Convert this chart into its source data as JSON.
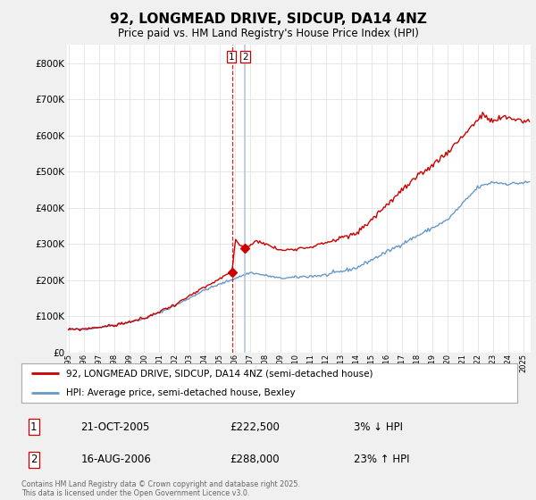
{
  "title": "92, LONGMEAD DRIVE, SIDCUP, DA14 4NZ",
  "subtitle": "Price paid vs. HM Land Registry's House Price Index (HPI)",
  "red_label": "92, LONGMEAD DRIVE, SIDCUP, DA14 4NZ (semi-detached house)",
  "blue_label": "HPI: Average price, semi-detached house, Bexley",
  "footer": "Contains HM Land Registry data © Crown copyright and database right 2025.\nThis data is licensed under the Open Government Licence v3.0.",
  "transaction1_date": "21-OCT-2005",
  "transaction1_price": "£222,500",
  "transaction1_hpi": "3% ↓ HPI",
  "transaction2_date": "16-AUG-2006",
  "transaction2_price": "£288,000",
  "transaction2_hpi": "23% ↑ HPI",
  "vline_x1": 2005.8,
  "vline_x2": 2006.62,
  "sale1_value": 222500,
  "sale2_value": 288000,
  "ylim": [
    0,
    850000
  ],
  "xlim_start": 1994.9,
  "xlim_end": 2025.5,
  "background_color": "#f0f0f0",
  "plot_bg_color": "#ffffff",
  "red_color": "#cc0000",
  "blue_color": "#6699cc",
  "vline1_color": "#cc0000",
  "vline2_color": "#aabbdd",
  "grid_color": "#dddddd",
  "title_fontsize": 11,
  "subtitle_fontsize": 8.5
}
